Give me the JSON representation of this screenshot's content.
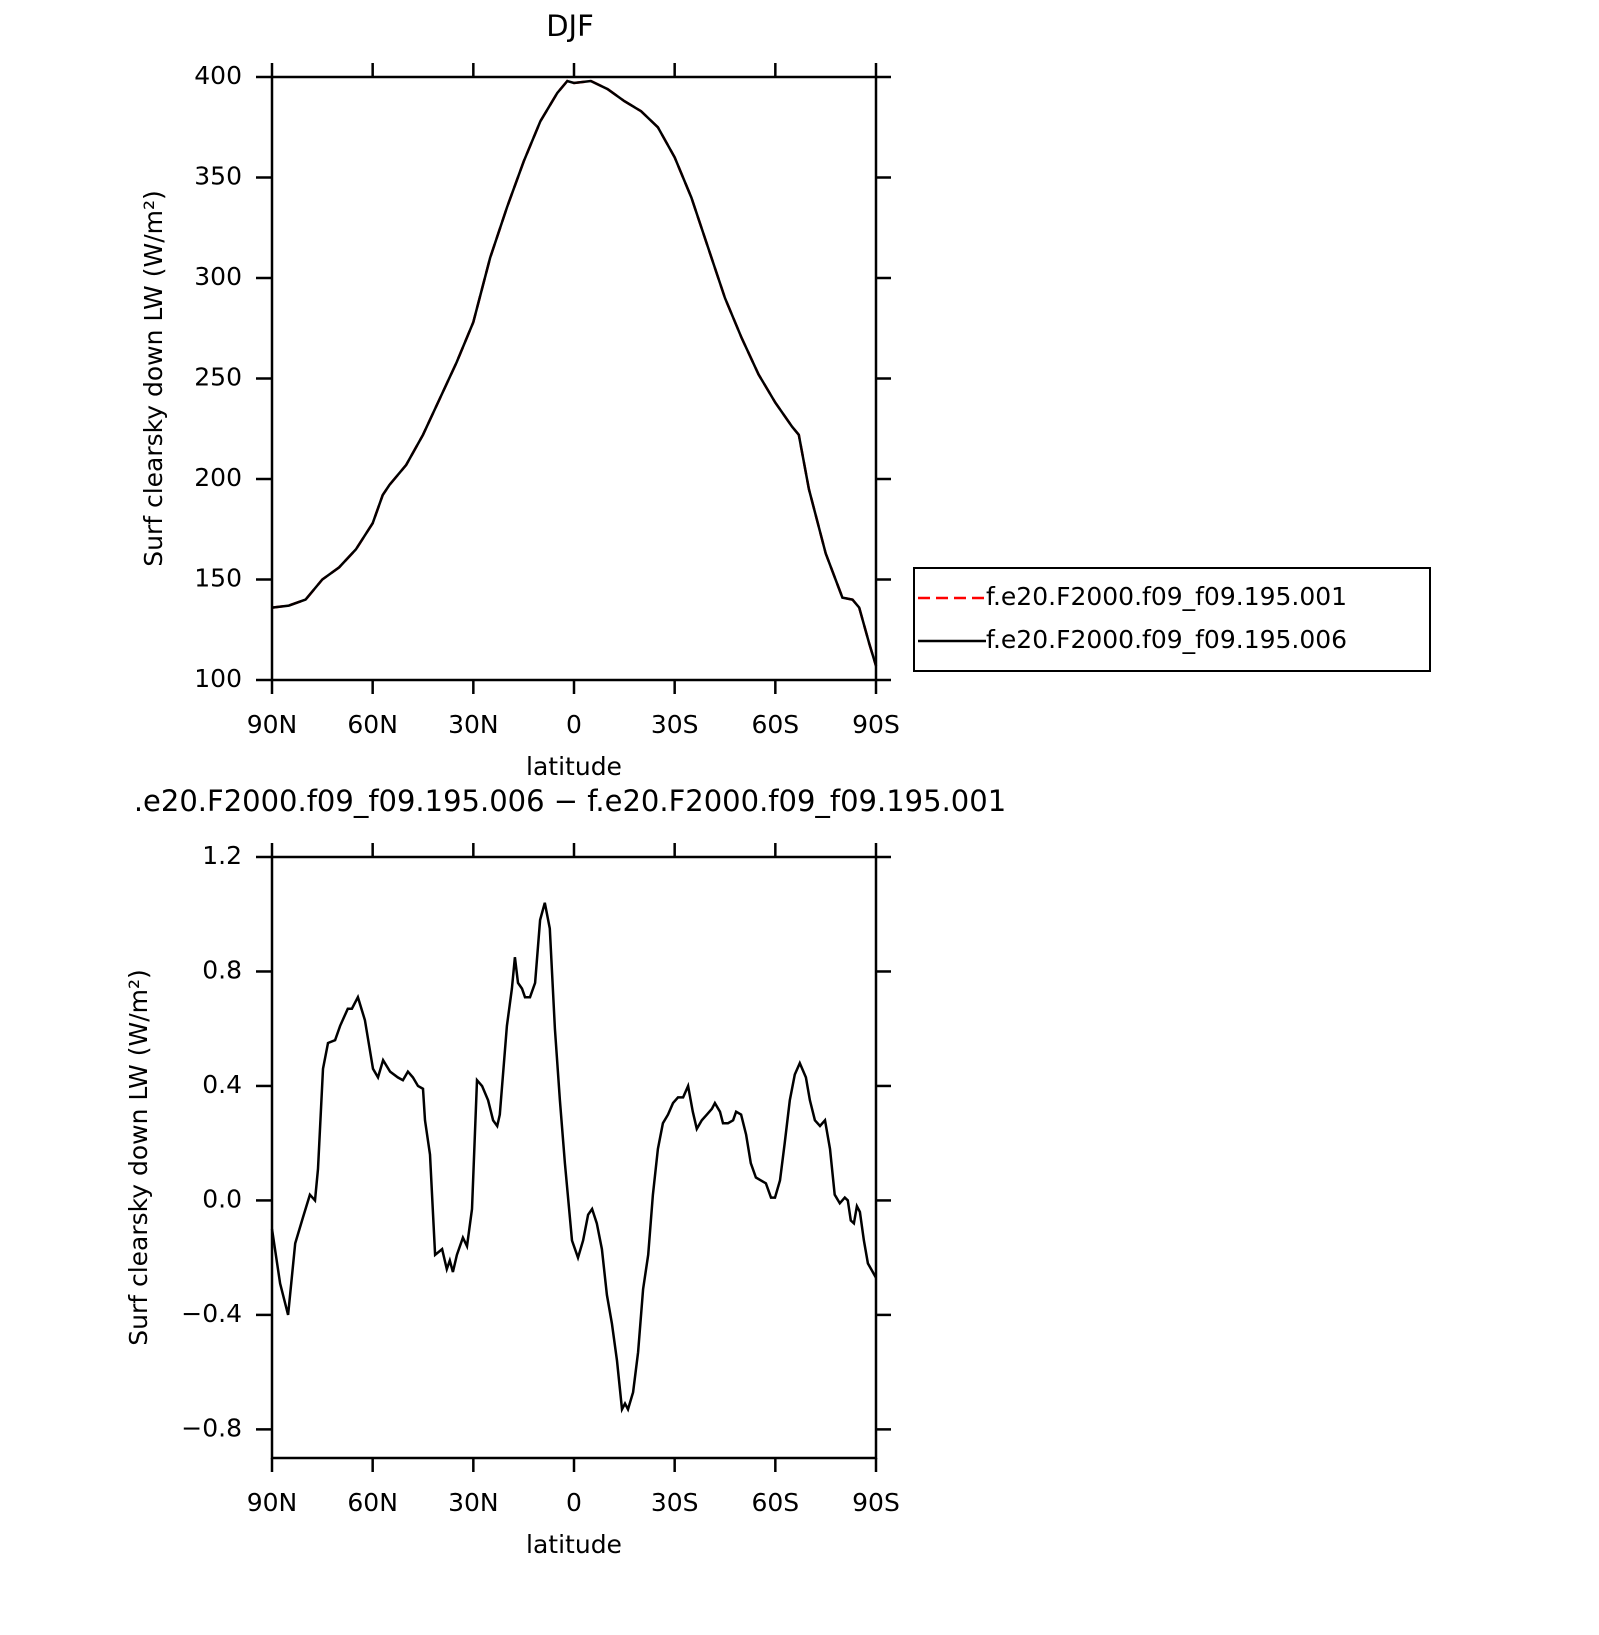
{
  "chart_data": [
    {
      "type": "line",
      "title": "DJF",
      "x_label": "latitude",
      "y_label": "Surf clearsky down LW (W/m²)",
      "x": [
        90,
        85,
        80,
        75,
        70,
        65,
        60,
        57,
        55,
        50,
        45,
        40,
        35,
        30,
        25,
        20,
        15,
        10,
        5,
        2,
        0,
        -5,
        -10,
        -15,
        -20,
        -25,
        -30,
        -35,
        -40,
        -45,
        -50,
        -55,
        -60,
        -65,
        -67,
        -70,
        -75,
        -80,
        -83,
        -85,
        -88,
        -90
      ],
      "series": [
        {
          "name": "f.e20.F2000.f09_f09.195.001",
          "color": "#ff0000",
          "dash": "dashed",
          "values": [
            136,
            137,
            140,
            150,
            156,
            165,
            178,
            192,
            197,
            207,
            222,
            240,
            258,
            278,
            310,
            335,
            358,
            378,
            392,
            398,
            397,
            398,
            394,
            388,
            383,
            375,
            360,
            340,
            315,
            290,
            270,
            252,
            238,
            226,
            222,
            195,
            163,
            141,
            140,
            136,
            118,
            107
          ]
        },
        {
          "name": "f.e20.F2000.f09_f09.195.006",
          "color": "#000000",
          "dash": "solid",
          "values": [
            136,
            137,
            140,
            150,
            156,
            165,
            178,
            192,
            197,
            207,
            222,
            240,
            258,
            278,
            310,
            335,
            358,
            378,
            392,
            398,
            397,
            398,
            394,
            388,
            383,
            375,
            360,
            340,
            315,
            290,
            270,
            252,
            238,
            226,
            222,
            195,
            163,
            141,
            140,
            136,
            118,
            107
          ]
        }
      ],
      "xlim": [
        90,
        -90
      ],
      "xticks": [
        {
          "value": 90,
          "label": "90N"
        },
        {
          "value": 60,
          "label": "60N"
        },
        {
          "value": 30,
          "label": "30N"
        },
        0,
        {
          "value": -30,
          "label": "30S"
        },
        {
          "value": -60,
          "label": "60S"
        },
        {
          "value": -90,
          "label": "90S"
        }
      ],
      "ylim": [
        100,
        400
      ],
      "yticks": [
        100,
        150,
        200,
        250,
        300,
        350,
        400
      ],
      "legend": "right"
    },
    {
      "type": "line",
      "title": ".e20.F2000.f09_f09.195.006 − f.e20.F2000.f09_f09.195.001",
      "x_label": "latitude",
      "y_label": "Surf clearsky down LW (W/m²)",
      "x": [
        90,
        87.6,
        85.2,
        83.1,
        80.8,
        78.7,
        77.2,
        76.3,
        74.8,
        73.3,
        71.2,
        69.7,
        67.4,
        66.2,
        64.4,
        62.3,
        59.9,
        58.4,
        56.9,
        54.8,
        52.5,
        51.0,
        49.5,
        48.0,
        46.5,
        45.0,
        44.4,
        42.9,
        41.4,
        39.3,
        37.9,
        37.0,
        36.1,
        34.9,
        33.1,
        31.9,
        30.4,
        28.9,
        27.4,
        25.6,
        24.1,
        22.9,
        22.1,
        20.0,
        18.5,
        17.6,
        16.7,
        15.5,
        14.6,
        13.1,
        11.6,
        10.1,
        8.7,
        7.2,
        5.7,
        4.2,
        2.7,
        0.6,
        -1.2,
        -2.7,
        -4.2,
        -5.4,
        -6.8,
        -8.3,
        -9.8,
        -11.3,
        -12.8,
        -14.3,
        -15.2,
        -16.1,
        -17.6,
        -19.1,
        -20.6,
        -22.1,
        -23.5,
        -25.0,
        -26.5,
        -28.0,
        -29.5,
        -31.0,
        -32.5,
        -34.0,
        -35.4,
        -36.6,
        -38.1,
        -39.6,
        -41.1,
        -42.0,
        -43.5,
        -44.4,
        -45.9,
        -47.4,
        -48.3,
        -49.8,
        -51.3,
        -52.7,
        -54.2,
        -55.7,
        -57.2,
        -58.7,
        -59.9,
        -61.4,
        -62.8,
        -64.3,
        -65.8,
        -67.3,
        -69.1,
        -70.3,
        -71.8,
        -73.3,
        -74.8,
        -76.3,
        -77.7,
        -79.2,
        -80.7,
        -81.6,
        -82.5,
        -83.4,
        -84.3,
        -85.2,
        -86.4,
        -87.6,
        -90.0
      ],
      "values": [
        -0.1,
        -0.29,
        -0.4,
        -0.15,
        -0.06,
        0.02,
        0.0,
        0.11,
        0.46,
        0.55,
        0.56,
        0.61,
        0.67,
        0.67,
        0.71,
        0.63,
        0.46,
        0.43,
        0.49,
        0.45,
        0.43,
        0.42,
        0.45,
        0.43,
        0.4,
        0.39,
        0.28,
        0.16,
        -0.19,
        -0.17,
        -0.24,
        -0.21,
        -0.25,
        -0.19,
        -0.13,
        -0.16,
        -0.03,
        0.42,
        0.4,
        0.35,
        0.28,
        0.26,
        0.3,
        0.61,
        0.74,
        0.85,
        0.76,
        0.74,
        0.71,
        0.71,
        0.76,
        0.98,
        1.04,
        0.95,
        0.6,
        0.35,
        0.13,
        -0.14,
        -0.2,
        -0.14,
        -0.05,
        -0.03,
        -0.08,
        -0.17,
        -0.33,
        -0.43,
        -0.56,
        -0.73,
        -0.71,
        -0.73,
        -0.67,
        -0.53,
        -0.31,
        -0.19,
        0.02,
        0.18,
        0.27,
        0.3,
        0.34,
        0.36,
        0.36,
        0.4,
        0.31,
        0.25,
        0.28,
        0.3,
        0.32,
        0.34,
        0.31,
        0.27,
        0.27,
        0.28,
        0.31,
        0.3,
        0.23,
        0.13,
        0.08,
        0.07,
        0.06,
        0.01,
        0.01,
        0.07,
        0.2,
        0.35,
        0.44,
        0.48,
        0.43,
        0.35,
        0.28,
        0.26,
        0.28,
        0.18,
        0.02,
        -0.01,
        0.01,
        0.0,
        -0.07,
        -0.08,
        -0.02,
        -0.04,
        -0.14,
        -0.22,
        -0.27
      ],
      "color": "#000000",
      "xlim": [
        90,
        -90
      ],
      "xticks": [
        {
          "value": 90,
          "label": "90N"
        },
        {
          "value": 60,
          "label": "60N"
        },
        {
          "value": 30,
          "label": "30N"
        },
        0,
        {
          "value": -30,
          "label": "30S"
        },
        {
          "value": -60,
          "label": "60S"
        },
        {
          "value": -90,
          "label": "90S"
        }
      ],
      "ylim": [
        -0.9,
        1.2
      ],
      "yticks": [
        {
          "value": -0.8,
          "label": "−0.8"
        },
        {
          "value": -0.4,
          "label": "−0.4"
        },
        {
          "value": 0,
          "label": "0.0"
        },
        0.4,
        0.8,
        1.2
      ]
    }
  ]
}
